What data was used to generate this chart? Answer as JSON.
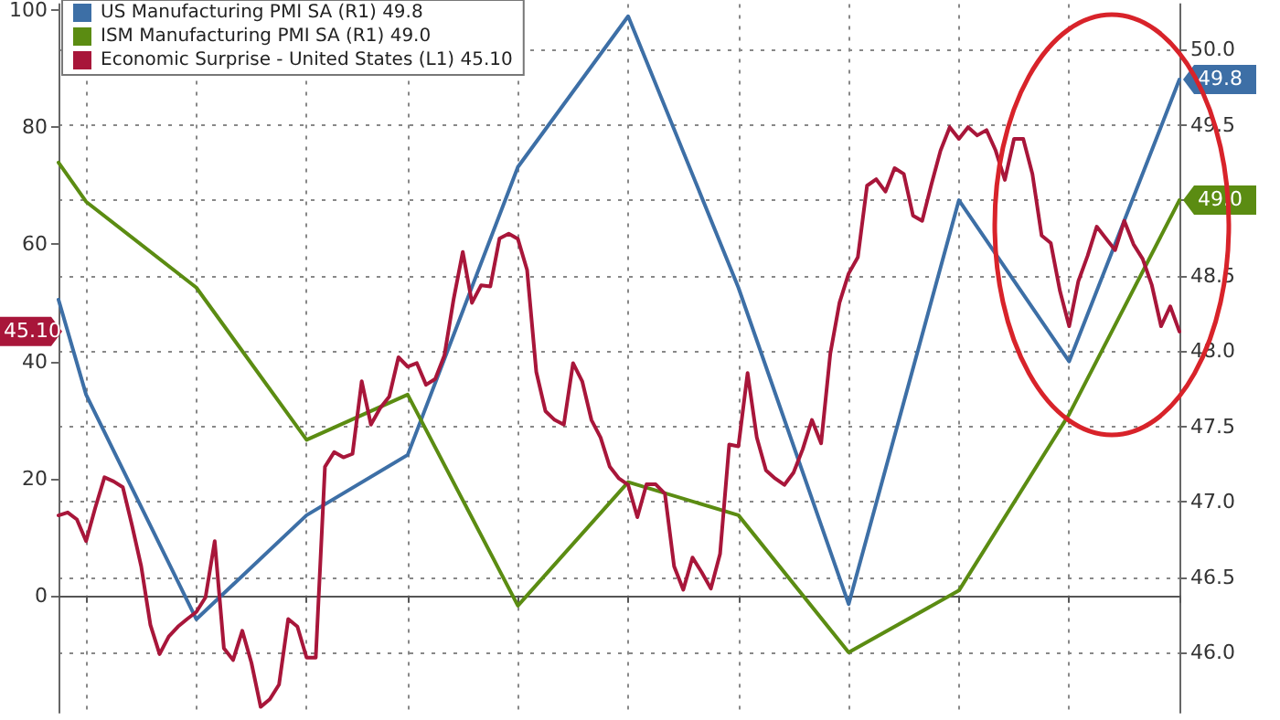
{
  "chart_data": {
    "type": "line",
    "categories": [
      null,
      null,
      null,
      null,
      null,
      null,
      null,
      null,
      null,
      null,
      null,
      null,
      null,
      null,
      null,
      null,
      null,
      null,
      null,
      null,
      null,
      null,
      null,
      null,
      null,
      null,
      null,
      null,
      null,
      null,
      null,
      null,
      null,
      null,
      null,
      null,
      null,
      null,
      null,
      null,
      null,
      null,
      null,
      null,
      null,
      null,
      null,
      null,
      null,
      null,
      null,
      null,
      null,
      null,
      null,
      null,
      null,
      null,
      null,
      null,
      null,
      null,
      null,
      null,
      null,
      null,
      null,
      null,
      null,
      null,
      null,
      null,
      null,
      null,
      null,
      null,
      null,
      null,
      null,
      null,
      null,
      null,
      null,
      null,
      null,
      null,
      null,
      null,
      null,
      null,
      null,
      null,
      null,
      null,
      null,
      null,
      null,
      null,
      null,
      null,
      null,
      null,
      null,
      null,
      null,
      null,
      null,
      null,
      null,
      null,
      null,
      null,
      null,
      null,
      null,
      null,
      null,
      null,
      null,
      null,
      null,
      null,
      null
    ],
    "series": [
      {
        "name": "US Manufacturing PMI SA (R1) 49.8",
        "color": "#3d6fa6",
        "axis": "y2",
        "values": [
          48.34,
          null,
          null,
          47.71,
          null,
          null,
          null,
          null,
          null,
          null,
          null,
          null,
          null,
          null,
          null,
          46.22,
          null,
          null,
          null,
          null,
          null,
          null,
          null,
          null,
          null,
          null,
          null,
          46.91,
          null,
          null,
          null,
          null,
          null,
          null,
          null,
          null,
          null,
          null,
          47.31,
          null,
          null,
          null,
          null,
          null,
          null,
          null,
          null,
          null,
          null,
          null,
          49.22,
          null,
          null,
          null,
          null,
          null,
          null,
          null,
          null,
          null,
          null,
          null,
          50.22,
          null,
          null,
          null,
          null,
          null,
          null,
          null,
          null,
          null,
          null,
          null,
          48.42,
          null,
          null,
          null,
          null,
          null,
          null,
          null,
          null,
          null,
          null,
          null,
          46.32,
          null,
          null,
          null,
          null,
          null,
          null,
          null,
          null,
          null,
          null,
          null,
          49.0,
          null,
          null,
          null,
          null,
          null,
          null,
          null,
          null,
          null,
          null,
          null,
          47.93,
          null,
          null,
          null,
          null,
          null,
          null,
          null,
          null,
          null,
          null,
          null,
          49.8
        ],
        "value_labels": [
          null,
          null,
          null,
          null,
          null,
          null,
          null,
          null,
          null,
          null,
          null,
          null,
          null,
          null,
          null,
          null,
          null,
          null,
          null,
          null,
          null,
          null,
          null,
          null,
          null,
          null,
          null,
          null,
          null,
          null,
          null,
          null,
          null,
          null,
          null,
          null,
          null,
          null,
          null,
          null,
          null,
          null,
          null,
          null,
          null,
          null,
          null,
          null,
          null,
          null,
          null,
          null,
          null,
          null,
          null,
          null,
          null,
          null,
          null,
          null,
          null,
          null,
          null,
          null,
          null,
          null,
          null,
          null,
          null,
          null,
          null,
          null,
          null,
          null,
          null,
          null,
          null,
          null,
          null,
          null,
          null,
          null,
          null,
          null,
          null,
          null,
          null,
          null,
          null,
          null,
          null,
          null,
          null,
          null,
          null,
          null,
          null,
          null,
          null,
          null,
          null,
          null,
          null,
          null,
          null,
          null,
          null,
          null,
          null,
          null,
          null,
          null,
          null,
          null,
          null,
          null,
          null,
          null,
          null,
          null,
          null,
          null,
          "49.8"
        ]
      },
      {
        "name": "ISM Manufacturing PMI SA (R1) 49.0",
        "color": "#5b8c12",
        "axis": "y2",
        "values": [
          49.25,
          null,
          null,
          48.99,
          null,
          null,
          null,
          null,
          null,
          null,
          null,
          null,
          null,
          null,
          null,
          48.42,
          null,
          null,
          null,
          null,
          null,
          null,
          null,
          null,
          null,
          null,
          null,
          47.41,
          null,
          null,
          null,
          null,
          null,
          null,
          null,
          null,
          null,
          null,
          47.71,
          null,
          null,
          null,
          null,
          null,
          null,
          null,
          null,
          null,
          null,
          null,
          46.31,
          null,
          null,
          null,
          null,
          null,
          null,
          null,
          null,
          null,
          null,
          null,
          47.13,
          null,
          null,
          null,
          null,
          null,
          null,
          null,
          null,
          null,
          null,
          null,
          46.91,
          null,
          null,
          null,
          null,
          null,
          null,
          null,
          null,
          null,
          null,
          null,
          46.0,
          null,
          null,
          null,
          null,
          null,
          null,
          null,
          null,
          null,
          null,
          null,
          46.41,
          null,
          null,
          null,
          null,
          null,
          null,
          null,
          null,
          null,
          null,
          null,
          47.58,
          null,
          null,
          null,
          null,
          null,
          null,
          null,
          null,
          null,
          null,
          null,
          49.0
        ],
        "value_labels": [
          null,
          null,
          null,
          null,
          null,
          null,
          null,
          null,
          null,
          null,
          null,
          null,
          null,
          null,
          null,
          null,
          null,
          null,
          null,
          null,
          null,
          null,
          null,
          null,
          null,
          null,
          null,
          null,
          null,
          null,
          null,
          null,
          null,
          null,
          null,
          null,
          null,
          null,
          null,
          null,
          null,
          null,
          null,
          null,
          null,
          null,
          null,
          null,
          null,
          null,
          null,
          null,
          null,
          null,
          null,
          null,
          null,
          null,
          null,
          null,
          null,
          null,
          null,
          null,
          null,
          null,
          null,
          null,
          null,
          null,
          null,
          null,
          null,
          null,
          null,
          null,
          null,
          null,
          null,
          null,
          null,
          null,
          null,
          null,
          null,
          null,
          null,
          null,
          null,
          null,
          null,
          null,
          null,
          null,
          null,
          null,
          null,
          null,
          null,
          null,
          null,
          null,
          null,
          null,
          null,
          null,
          null,
          null,
          null,
          null,
          null,
          null,
          null,
          null,
          null,
          null,
          null,
          null,
          null,
          null,
          null,
          null,
          "49.0"
        ]
      },
      {
        "name": "Economic Surprise - United States (L1) 45.10",
        "color": "#a8163a",
        "values": [
          13.7,
          14.2,
          13,
          9.3,
          15,
          20.2,
          19.5,
          18.5,
          12,
          5,
          -5,
          -10,
          -7,
          -5.3,
          -4,
          -2.8,
          -0.3,
          9.3,
          -9,
          -11,
          -6,
          -11.5,
          -19,
          -17.7,
          -15.2,
          -4,
          -5.3,
          -10.6,
          -10.6,
          22,
          24.5,
          23.6,
          24.2,
          36.6,
          29.2,
          32,
          34,
          40.7,
          39.1,
          39.7,
          36,
          37,
          41,
          50.6,
          58.7,
          50,
          53,
          52.8,
          61,
          61.8,
          60.9,
          55.6,
          38.2,
          31.5,
          30,
          29.2,
          39.7,
          36.6,
          30,
          27,
          22,
          20,
          18.9,
          13.4,
          19,
          19,
          17.4,
          5,
          1,
          6.5,
          4,
          1.2,
          7.1,
          25.8,
          25.5,
          38,
          27,
          21.4,
          20,
          18.9,
          21,
          25,
          30,
          26,
          41.3,
          50,
          55,
          57.8,
          70,
          71.1,
          69,
          73,
          72,
          64.9,
          64,
          70.2,
          76,
          80,
          78,
          80,
          78.6,
          79.5,
          76,
          71,
          78,
          78,
          72,
          61.5,
          60.2,
          52,
          46,
          53.7,
          58,
          63,
          61,
          59,
          64,
          60,
          57.5,
          53,
          46,
          49.4,
          45.1
        ]
      }
    ],
    "annotations": [
      {
        "text": "45.10",
        "y": 45.1
      }
    ],
    "ylim": [
      -20,
      101
    ],
    "yticks": [
      0,
      20,
      40,
      60,
      80,
      100
    ],
    "y2lim": [
      45.6,
      50.3
    ],
    "y2ticks": [
      {
        "value": 46,
        "label": "46.0"
      },
      {
        "value": 46.5,
        "label": "46.5"
      },
      {
        "value": 47,
        "label": "47.0"
      },
      {
        "value": 47.5,
        "label": "47.5"
      },
      {
        "value": 48,
        "label": "48.0"
      },
      {
        "value": 48.5,
        "label": "48.5"
      },
      {
        "value": 49,
        "label": null
      },
      {
        "value": 49.5,
        "label": "49.5"
      },
      {
        "value": 50,
        "label": "50.0"
      }
    ],
    "tick_labels": "y",
    "grid": true,
    "legend": "top left",
    "line_style": "solid"
  }
}
